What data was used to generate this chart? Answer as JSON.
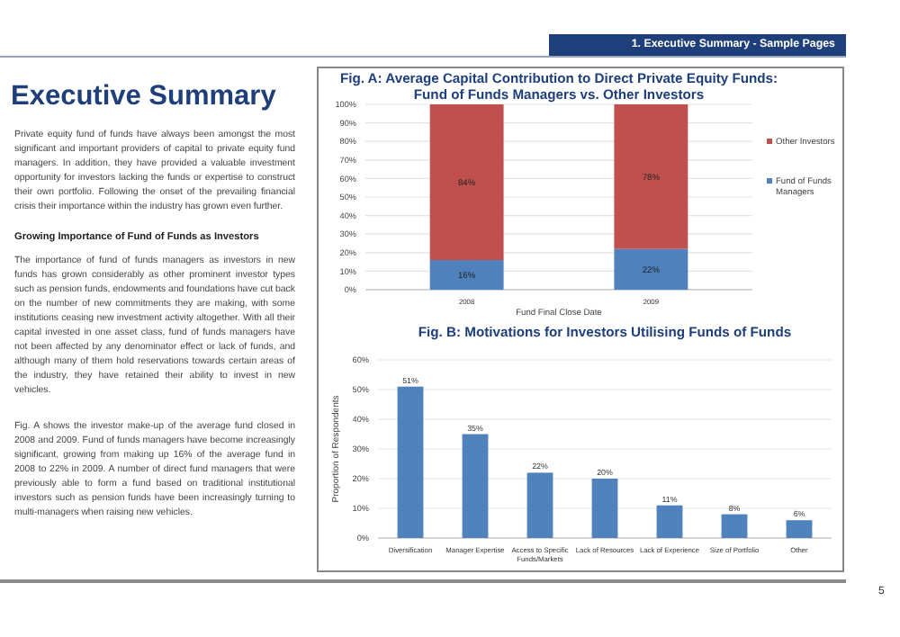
{
  "chart_data": [
    {
      "type": "other",
      "title": "Executive Summary",
      "annotations": [
        "1. Executive Summary - Sample Pages",
        "Private equity fund of funds have always been amongst the most significant and important providers of capital to private equity fund managers. In addition, they have provided a valuable investment opportunity for investors lacking the funds or expertise to construct their own portfolio. Following the onset of the prevailing financial crisis their importance within the industry has grown even further.",
        "Growing Importance of Fund of Funds as Investors",
        "The importance of fund of funds managers as investors in new funds has grown considerably as other prominent investor types such as pension funds, endowments and foundations have cut back on the number of new commitments they are making, with some institutions ceasing new investment activity altogether. With all their capital invested in one asset class, fund of funds managers have not been affected by any denominator effect or lack of funds, and although many of them hold reservations towards certain areas of the industry, they have retained their ability to invest in new vehicles.",
        "Fig. A shows the investor make-up of the average fund closed in 2008 and 2009. Fund of funds managers have become increasingly significant, growing from making up 16% of the average fund in 2008 to 22% in 2009. A number of direct fund managers that were previously able to form a fund based on traditional institutional investors such as pension funds have been increasingly turning to multi-managers when raising new vehicles.",
        "5"
      ]
    },
    {
      "type": "bar",
      "title": "Fig. A: Average Capital Contribution to Direct Private Equity Funds: Fund of Funds Managers vs. Other Investors",
      "xlabel": "Fund Final Close Date",
      "categories": [
        "2008",
        "2009"
      ],
      "stacked": true,
      "legend": "right",
      "grid": "y",
      "series": [
        {
          "name": "Fund of Funds Managers",
          "color": "#4f81bd",
          "values": [
            16,
            22
          ],
          "value_labels": [
            "16%",
            "22%"
          ]
        },
        {
          "name": "Other Investors",
          "color": "#c0504d",
          "values": [
            84,
            78
          ],
          "value_labels": [
            "84%",
            "78%"
          ]
        }
      ],
      "ylim": [
        0,
        100
      ],
      "yticks": [
        {
          "value": 0,
          "label": "0%"
        },
        {
          "value": 10,
          "label": "10%"
        },
        {
          "value": 20,
          "label": "20%"
        },
        {
          "value": 30,
          "label": "30%"
        },
        {
          "value": 40,
          "label": "40%"
        },
        {
          "value": 50,
          "label": "50%"
        },
        {
          "value": 60,
          "label": "60%"
        },
        {
          "value": 70,
          "label": "70%"
        },
        {
          "value": 80,
          "label": "80%"
        },
        {
          "value": 90,
          "label": "90%"
        },
        {
          "value": 100,
          "label": "100%"
        }
      ]
    },
    {
      "type": "bar",
      "title": "Fig. B: Motivations for Investors Utilising Funds of Funds",
      "ylabel": "Proportion of Respondents",
      "grid": "y",
      "categories": [
        "Diversification",
        "Manager Expertise",
        "Access to Specific Funds/Markets",
        "Lack of Resources",
        "Lack of Experience",
        "Size of Portfolio",
        "Other"
      ],
      "series": [
        {
          "color": "#4f81bd",
          "values": [
            51,
            35,
            22,
            20,
            11,
            8,
            6
          ],
          "value_labels": [
            "51%",
            "35%",
            "22%",
            "20%",
            "11%",
            "8%",
            "6%"
          ]
        }
      ],
      "ylim": [
        0,
        60
      ],
      "yticks": [
        {
          "value": 0,
          "label": "0%"
        },
        {
          "value": 10,
          "label": "10%"
        },
        {
          "value": 20,
          "label": "20%"
        },
        {
          "value": 30,
          "label": "30%"
        },
        {
          "value": 40,
          "label": "40%"
        },
        {
          "value": 50,
          "label": "50%"
        },
        {
          "value": 60,
          "label": "60%"
        }
      ]
    }
  ]
}
